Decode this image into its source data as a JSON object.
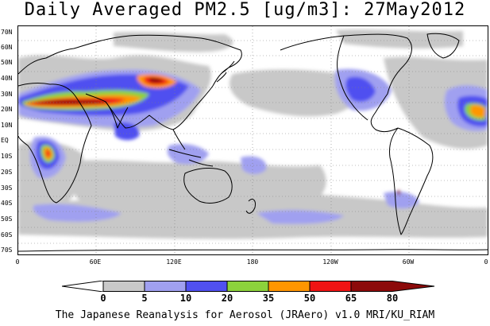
{
  "title": "Daily Averaged PM2.5 [ug/m3]: 27May2012",
  "footer": "The Japanese Reanalysis for Aerosol (JRAero) v1.0 MRI/KU_RIAM",
  "latitude_labels": [
    "70N",
    "60N",
    "50N",
    "40N",
    "30N",
    "20N",
    "10N",
    "EQ",
    "10S",
    "20S",
    "30S",
    "40S",
    "50S",
    "60S",
    "70S"
  ],
  "longitude_labels": [
    "0",
    "60E",
    "120E",
    "180",
    "120W",
    "60W",
    "0"
  ],
  "colorbar": {
    "labels": [
      "0",
      "5",
      "10",
      "20",
      "35",
      "50",
      "65",
      "80"
    ],
    "colors": [
      "#ffffff",
      "#c8c8c8",
      "#a0a0f0",
      "#5050f0",
      "#8cd23c",
      "#ff9600",
      "#f01414",
      "#8c0a0a"
    ]
  },
  "colors": {
    "coastline": "#000000",
    "grid": "#808080"
  }
}
